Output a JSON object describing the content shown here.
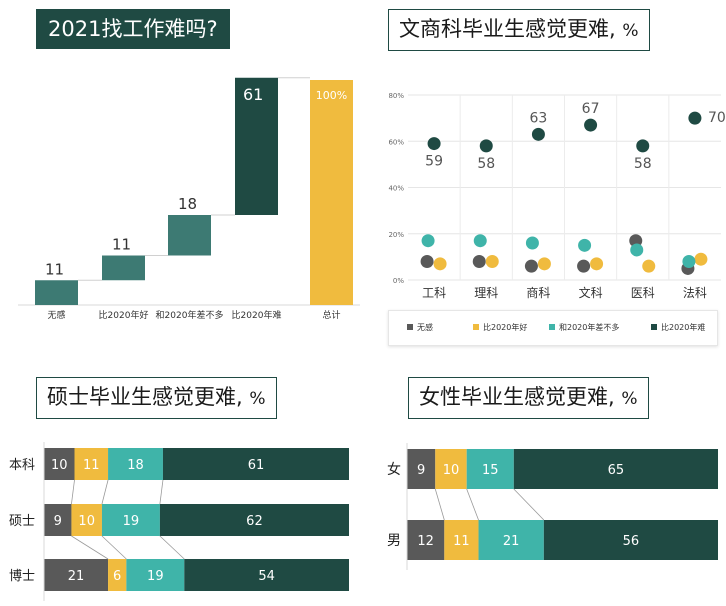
{
  "colors": {
    "dark": "#1f4a43",
    "mid": "#3d7a73",
    "teal": "#3fb4a9",
    "yellow": "#f0bb3e",
    "gray": "#595959"
  },
  "chart_data": [
    {
      "id": "waterfall",
      "type": "bar",
      "title": "2021找工作难吗?",
      "categories": [
        "无感",
        "比2020年好",
        "和2020年差不多",
        "比2020年难",
        "总计"
      ],
      "values": [
        11,
        11,
        18,
        61,
        100
      ],
      "value_labels": [
        "11",
        "11",
        "18",
        "61",
        "100%"
      ],
      "mode": "waterfall"
    },
    {
      "id": "scatter",
      "type": "scatter",
      "title": "文商科毕业生感觉更难,",
      "unit": "%",
      "categories": [
        "工科",
        "理科",
        "商科",
        "文科",
        "医科",
        "法科"
      ],
      "yticks": [
        "0%",
        "20%",
        "40%",
        "60%",
        "80%"
      ],
      "ylim": [
        0,
        80
      ],
      "series": [
        {
          "name": "无感",
          "values": [
            8,
            8,
            6,
            6,
            17,
            5
          ]
        },
        {
          "name": "比2020年好",
          "values": [
            7,
            8,
            7,
            7,
            6,
            9
          ]
        },
        {
          "name": "和2020年差不多",
          "values": [
            17,
            17,
            16,
            15,
            13,
            8
          ]
        },
        {
          "name": "比2020年难",
          "values": [
            59,
            58,
            63,
            67,
            58,
            70
          ]
        }
      ],
      "point_labels": [
        "59",
        "58",
        "63",
        "67",
        "58",
        "70"
      ]
    },
    {
      "id": "master",
      "type": "bar",
      "title": "硕士毕业生感觉更难,",
      "unit": "%",
      "categories": [
        "本科",
        "硕士",
        "博士"
      ],
      "series": [
        {
          "name": "无感",
          "values": [
            10,
            9,
            21
          ]
        },
        {
          "name": "比2020年好",
          "values": [
            11,
            10,
            6
          ]
        },
        {
          "name": "和2020年差不多",
          "values": [
            18,
            19,
            19
          ]
        },
        {
          "name": "比2020年难",
          "values": [
            61,
            62,
            54
          ]
        }
      ],
      "orientation": "horizontal-stacked"
    },
    {
      "id": "gender",
      "type": "bar",
      "title": "女性毕业生感觉更难,",
      "unit": "%",
      "categories": [
        "女",
        "男"
      ],
      "series": [
        {
          "name": "无感",
          "values": [
            9,
            12
          ]
        },
        {
          "name": "比2020年好",
          "values": [
            10,
            11
          ]
        },
        {
          "name": "和2020年差不多",
          "values": [
            15,
            21
          ]
        },
        {
          "name": "比2020年难",
          "values": [
            65,
            56
          ]
        }
      ],
      "orientation": "horizontal-stacked"
    }
  ]
}
